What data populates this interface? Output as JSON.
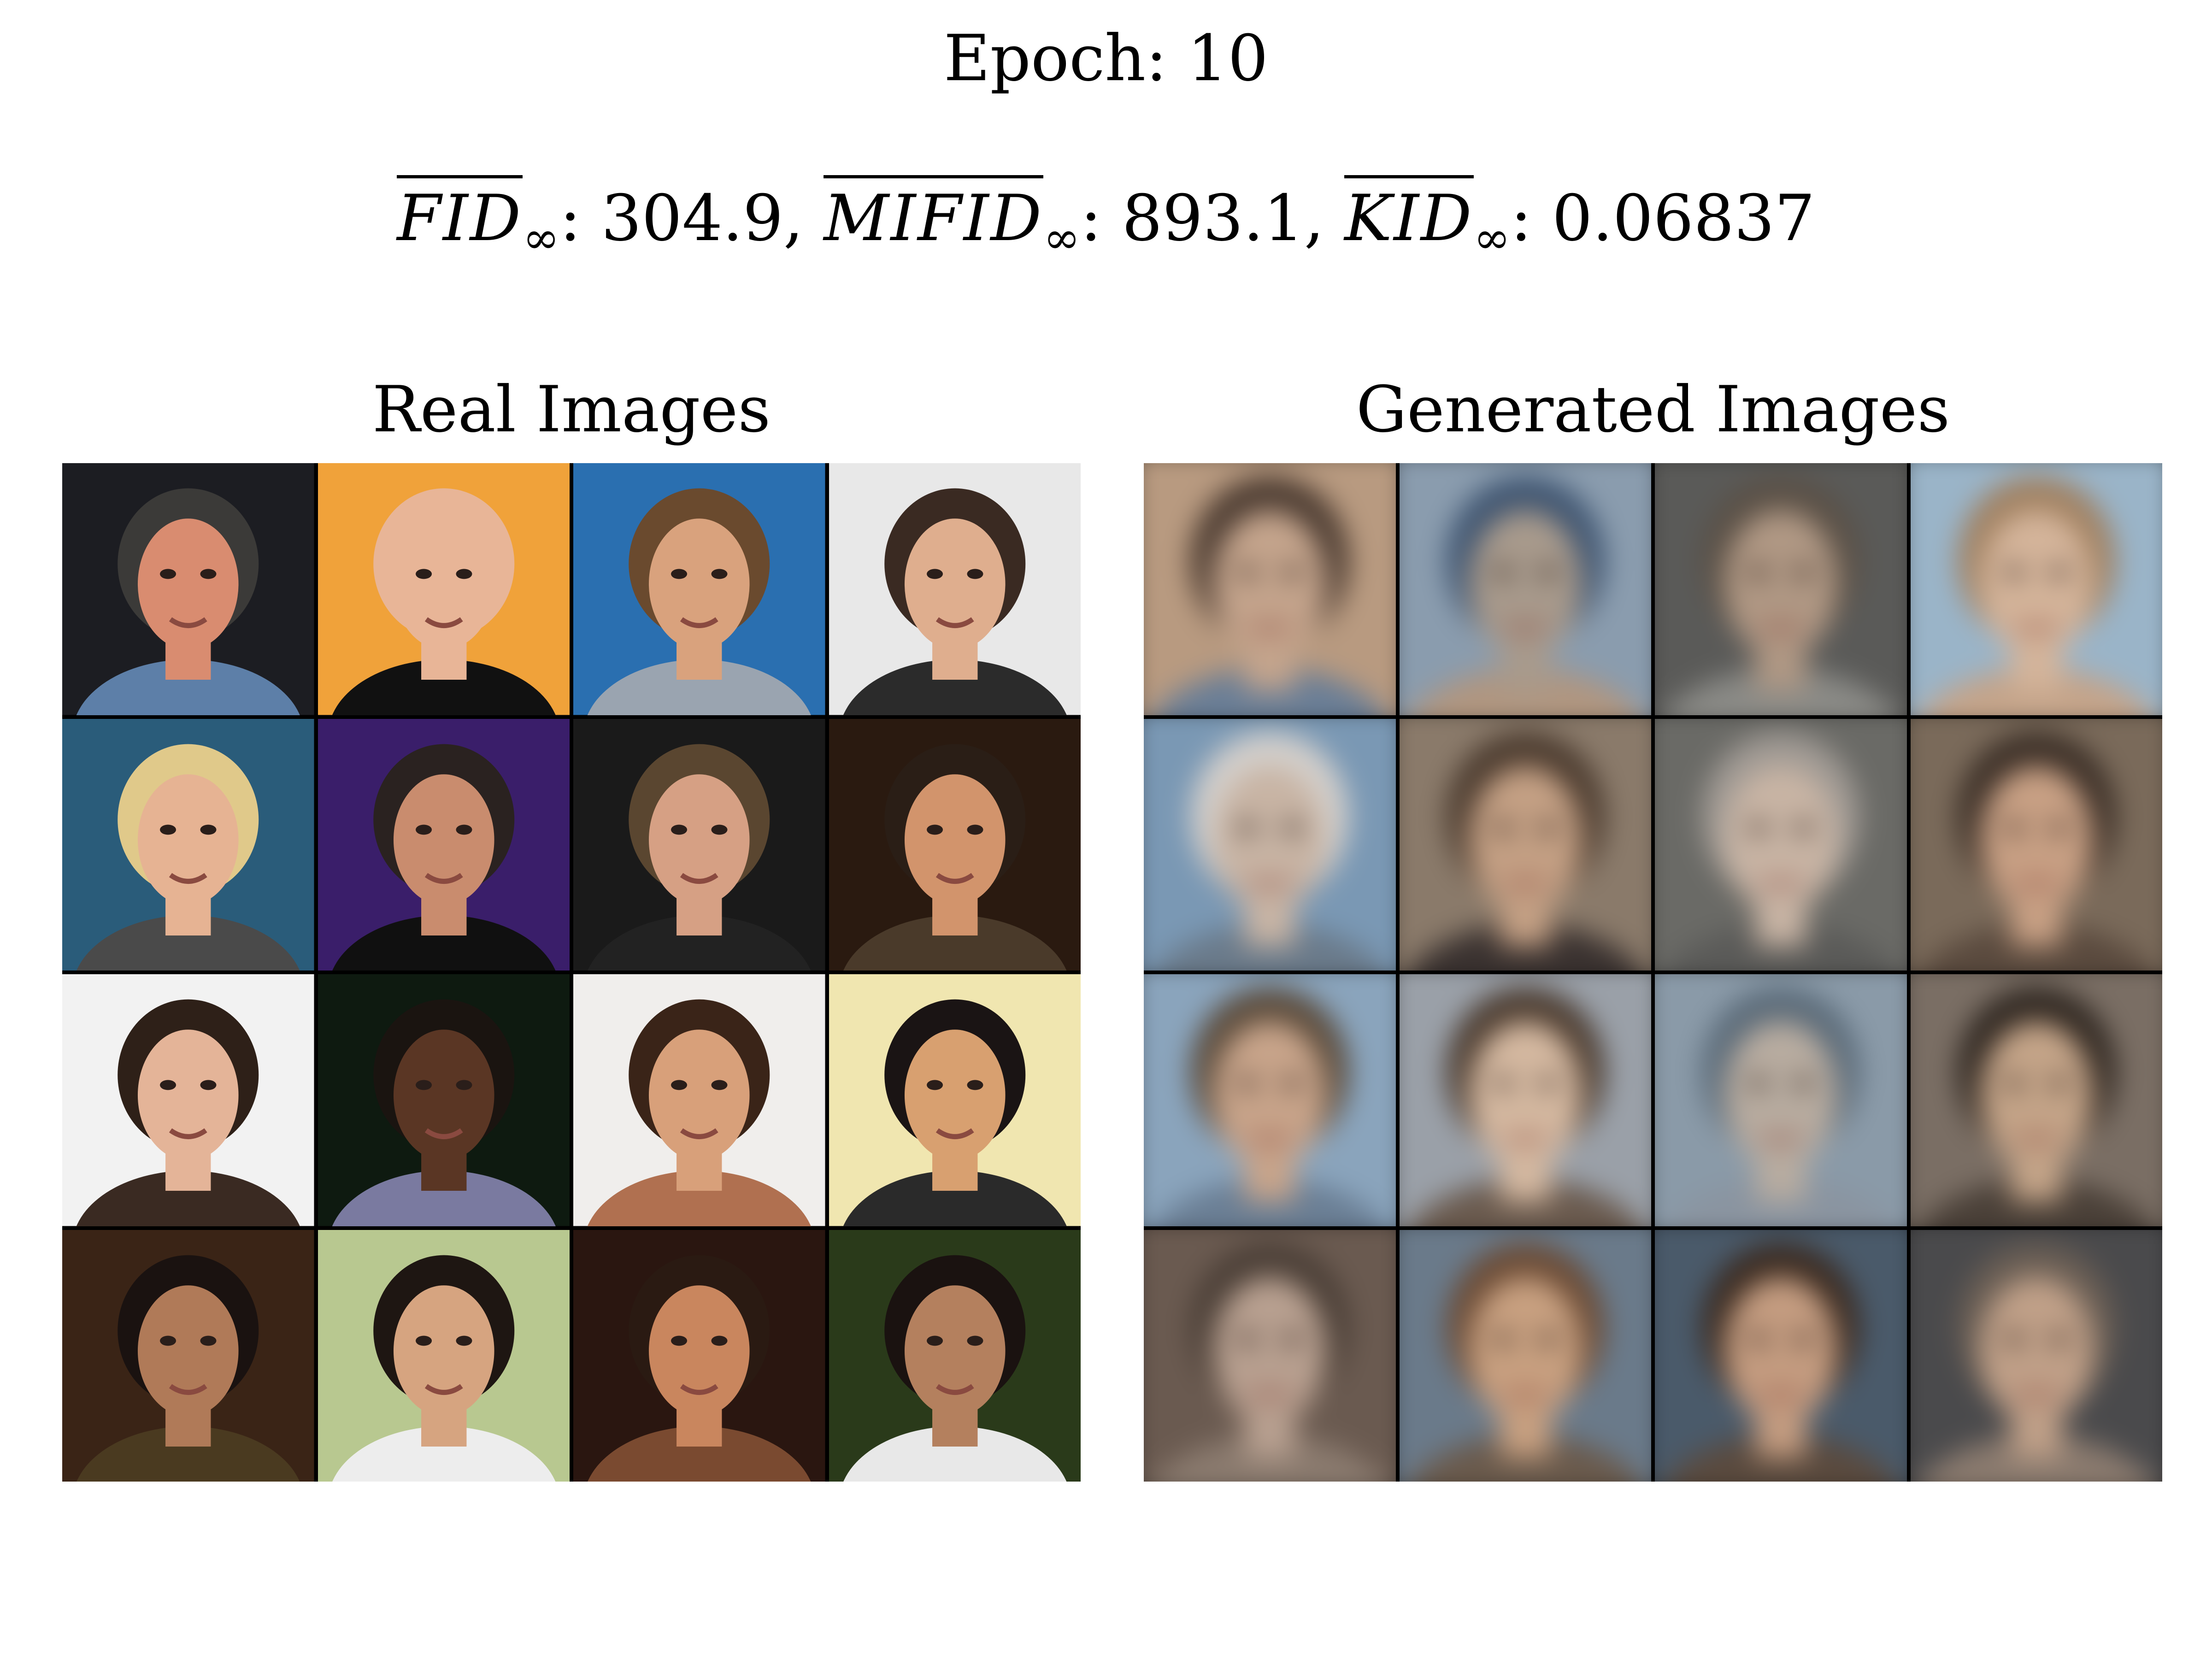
{
  "header": {
    "epoch_text": "Epoch: 10",
    "metrics": [
      {
        "name": "FID",
        "sub": "∞",
        "sep": ": ",
        "value": "304.9",
        "trail": ", "
      },
      {
        "name": "MIFID",
        "sub": "∞",
        "sep": ": ",
        "value": "893.1",
        "trail": ", "
      },
      {
        "name": "KID",
        "sub": "∞",
        "sep": ": ",
        "value": "0.06837",
        "trail": ""
      }
    ]
  },
  "panels": {
    "real_title": "Real Images",
    "generated_title": "Generated Images"
  },
  "real_images": [
    {
      "bg": "#1c1d22",
      "skin": "#d98c70",
      "hair": "#3b3a38",
      "shirt": "#5d7fa8"
    },
    {
      "bg": "#f0a23a",
      "skin": "#e8b597",
      "hair": "#e8b597",
      "shirt": "#111111"
    },
    {
      "bg": "#2a6fb0",
      "skin": "#d9a27d",
      "hair": "#6a4a2e",
      "shirt": "#9aa4b0"
    },
    {
      "bg": "#e8e8e8",
      "skin": "#dfae8e",
      "hair": "#3a2a22",
      "shirt": "#2b2b2b"
    },
    {
      "bg": "#2a5c7a",
      "skin": "#e6b393",
      "hair": "#e0c98a",
      "shirt": "#4a4a4a"
    },
    {
      "bg": "#3a1e6a",
      "skin": "#c98c6e",
      "hair": "#2a2220",
      "shirt": "#101010"
    },
    {
      "bg": "#1a1a1a",
      "skin": "#d6a084",
      "hair": "#5a4630",
      "shirt": "#222222"
    },
    {
      "bg": "#2a1a10",
      "skin": "#d2946c",
      "hair": "#2a1e16",
      "shirt": "#4a3a2a"
    },
    {
      "bg": "#f2f2f2",
      "skin": "#e4b498",
      "hair": "#2e2018",
      "shirt": "#3a2a22"
    },
    {
      "bg": "#0e1a10",
      "skin": "#5a3624",
      "hair": "#1a1410",
      "shirt": "#7a7aa0"
    },
    {
      "bg": "#f0eeec",
      "skin": "#d8a07a",
      "hair": "#3a2418",
      "shirt": "#b07050"
    },
    {
      "bg": "#f0e6b0",
      "skin": "#d8a070",
      "hair": "#1a1414",
      "shirt": "#2a2a2a"
    },
    {
      "bg": "#3a2416",
      "skin": "#b07a58",
      "hair": "#1a1210",
      "shirt": "#4a3a20"
    },
    {
      "bg": "#b8c890",
      "skin": "#d6a480",
      "hair": "#1e1612",
      "shirt": "#ededed"
    },
    {
      "bg": "#2a1610",
      "skin": "#c9865e",
      "hair": "#2a1a12",
      "shirt": "#7a4a30"
    },
    {
      "bg": "#2a3a1a",
      "skin": "#b4805e",
      "hair": "#1a1210",
      "shirt": "#e8e8e8"
    }
  ],
  "generated_images": [
    {
      "bg": "#b89a80",
      "skin": "#c4a48c",
      "hair": "#4a3a30",
      "shirt": "#6a7e96"
    },
    {
      "bg": "#8a9cae",
      "skin": "#a89a8c",
      "hair": "#3e5470",
      "shirt": "#b09680"
    },
    {
      "bg": "#5a5a58",
      "skin": "#b09884",
      "hair": "#5a5046",
      "shirt": "#8a8a86"
    },
    {
      "bg": "#9ab4c8",
      "skin": "#d4b49a",
      "hair": "#a08060",
      "shirt": "#c4a48a"
    },
    {
      "bg": "#7a98b4",
      "skin": "#c8b4a4",
      "hair": "#d4d0cc",
      "shirt": "#6a7a8a"
    },
    {
      "bg": "#8a7a6a",
      "skin": "#c4a084",
      "hair": "#4a3a2e",
      "shirt": "#3a3230"
    },
    {
      "bg": "#6a6a66",
      "skin": "#c8b4a4",
      "hair": "#a09a94",
      "shirt": "#5a5a58"
    },
    {
      "bg": "#7a6a5a",
      "skin": "#c8a084",
      "hair": "#3a2e26",
      "shirt": "#5a4a3e"
    },
    {
      "bg": "#8aa4bc",
      "skin": "#c8a48a",
      "hair": "#5a4a3a",
      "shirt": "#6a7e94"
    },
    {
      "bg": "#9aa0a8",
      "skin": "#d4b8a0",
      "hair": "#4a3a2e",
      "shirt": "#6a5a4e"
    },
    {
      "bg": "#8a9aa8",
      "skin": "#b8aca0",
      "hair": "#5a6a78",
      "shirt": "#8a94a0"
    },
    {
      "bg": "#7a6e64",
      "skin": "#c4a488",
      "hair": "#2e2620",
      "shirt": "#4a4038"
    },
    {
      "bg": "#6a5a50",
      "skin": "#b8a090",
      "hair": "#4a3e36",
      "shirt": "#8a7a6e"
    },
    {
      "bg": "#6a7a8a",
      "skin": "#c8a080",
      "hair": "#6a4a34",
      "shirt": "#6a5a4c"
    },
    {
      "bg": "#4a5a6a",
      "skin": "#c49c80",
      "hair": "#3a2a20",
      "shirt": "#5a4a3e"
    },
    {
      "bg": "#4a4a4c",
      "skin": "#c0a088",
      "hair": "#6a5e54",
      "shirt": "#8a7a6e"
    }
  ]
}
